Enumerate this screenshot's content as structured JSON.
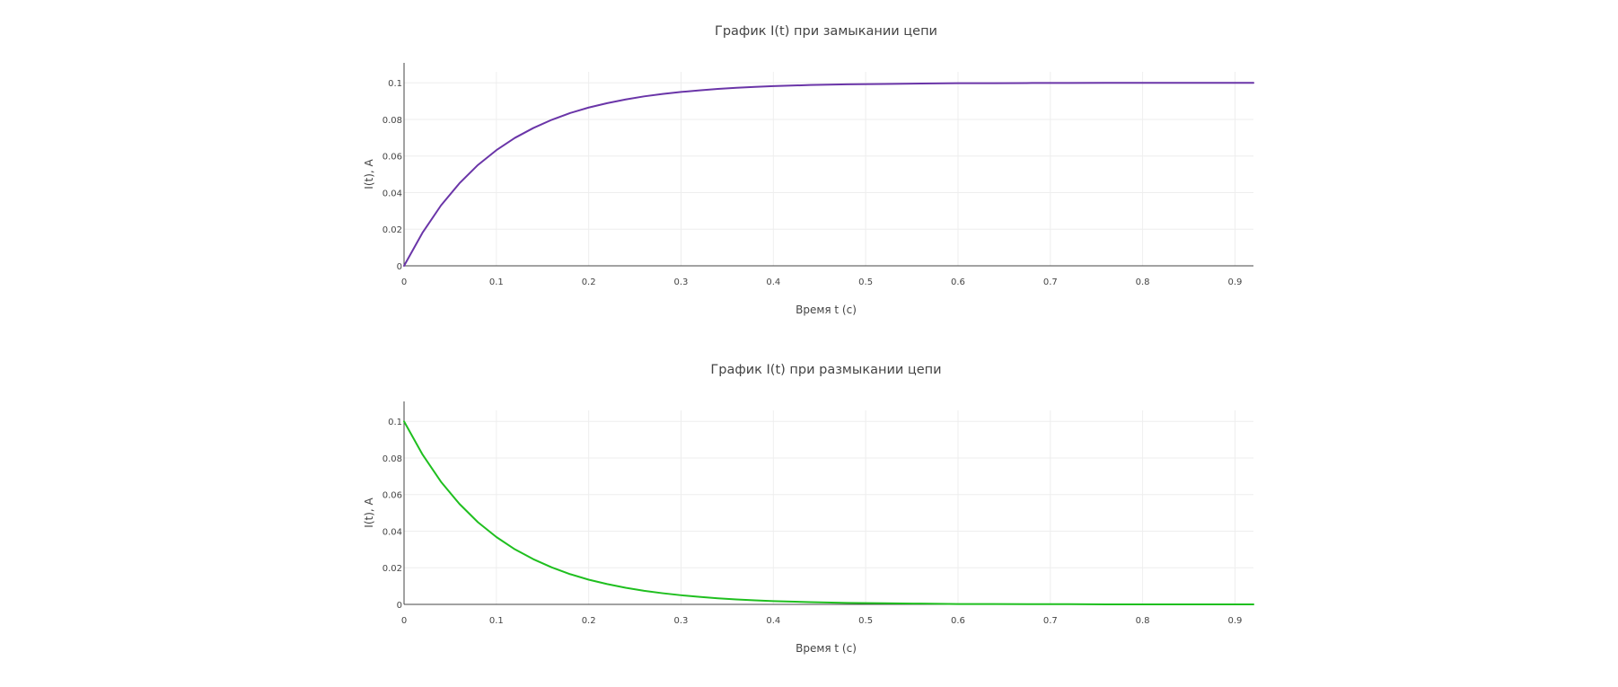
{
  "chart_data": [
    {
      "type": "line",
      "title": "График I(t) при замыкании цепи",
      "xlabel": "Время t (с)",
      "ylabel": "I(t), A",
      "xlim": [
        0,
        0.92
      ],
      "ylim": [
        0,
        0.106
      ],
      "grid": true,
      "xticks": [
        "0",
        "0.1",
        "0.2",
        "0.3",
        "0.4",
        "0.5",
        "0.6",
        "0.7",
        "0.8",
        "0.9"
      ],
      "xtick_values": [
        0,
        0.1,
        0.2,
        0.3,
        0.4,
        0.5,
        0.6,
        0.7,
        0.8,
        0.9
      ],
      "yticks": [
        "0",
        "0.02",
        "0.04",
        "0.06",
        "0.08",
        "0.1"
      ],
      "ytick_values": [
        0,
        0.02,
        0.04,
        0.06,
        0.08,
        0.1
      ],
      "color": "#6a35a8",
      "x": [
        0,
        0.02,
        0.04,
        0.06,
        0.08,
        0.1,
        0.12,
        0.14,
        0.16,
        0.18,
        0.2,
        0.22,
        0.24,
        0.26,
        0.28,
        0.3,
        0.32,
        0.34,
        0.36,
        0.38,
        0.4,
        0.44,
        0.48,
        0.52,
        0.56,
        0.6,
        0.64,
        0.68,
        0.72,
        0.76,
        0.8,
        0.84,
        0.88,
        0.92
      ],
      "y": [
        0,
        0.0181,
        0.033,
        0.0451,
        0.0551,
        0.0632,
        0.0699,
        0.0753,
        0.0798,
        0.0835,
        0.0865,
        0.0889,
        0.0909,
        0.0926,
        0.0939,
        0.095,
        0.0959,
        0.0967,
        0.0973,
        0.0978,
        0.0982,
        0.0988,
        0.0992,
        0.0994,
        0.0996,
        0.0998,
        0.0998,
        0.0999,
        0.0999,
        0.1,
        0.1,
        0.1,
        0.1,
        0.1
      ]
    },
    {
      "type": "line",
      "title": "График I(t) при размыкании цепи",
      "xlabel": "Время t (с)",
      "ylabel": "I(t), A",
      "xlim": [
        0,
        0.92
      ],
      "ylim": [
        0,
        0.106
      ],
      "grid": true,
      "xticks": [
        "0",
        "0.1",
        "0.2",
        "0.3",
        "0.4",
        "0.5",
        "0.6",
        "0.7",
        "0.8",
        "0.9"
      ],
      "xtick_values": [
        0,
        0.1,
        0.2,
        0.3,
        0.4,
        0.5,
        0.6,
        0.7,
        0.8,
        0.9
      ],
      "yticks": [
        "0",
        "0.02",
        "0.04",
        "0.06",
        "0.08",
        "0.1"
      ],
      "ytick_values": [
        0,
        0.02,
        0.04,
        0.06,
        0.08,
        0.1
      ],
      "color": "#1fbf1f",
      "x": [
        0,
        0.02,
        0.04,
        0.06,
        0.08,
        0.1,
        0.12,
        0.14,
        0.16,
        0.18,
        0.2,
        0.22,
        0.24,
        0.26,
        0.28,
        0.3,
        0.32,
        0.34,
        0.36,
        0.38,
        0.4,
        0.44,
        0.48,
        0.52,
        0.56,
        0.6,
        0.64,
        0.68,
        0.72,
        0.76,
        0.8,
        0.84,
        0.88,
        0.92
      ],
      "y": [
        0.1,
        0.0819,
        0.067,
        0.0549,
        0.0449,
        0.0368,
        0.0301,
        0.0247,
        0.0202,
        0.0165,
        0.0135,
        0.0111,
        0.0091,
        0.0074,
        0.0061,
        0.005,
        0.0041,
        0.0033,
        0.0027,
        0.0022,
        0.0018,
        0.0012,
        0.0008,
        0.0006,
        0.0004,
        0.0002,
        0.0002,
        0.0001,
        0.0001,
        0.0,
        0.0,
        0.0,
        0.0,
        0.0
      ]
    }
  ]
}
